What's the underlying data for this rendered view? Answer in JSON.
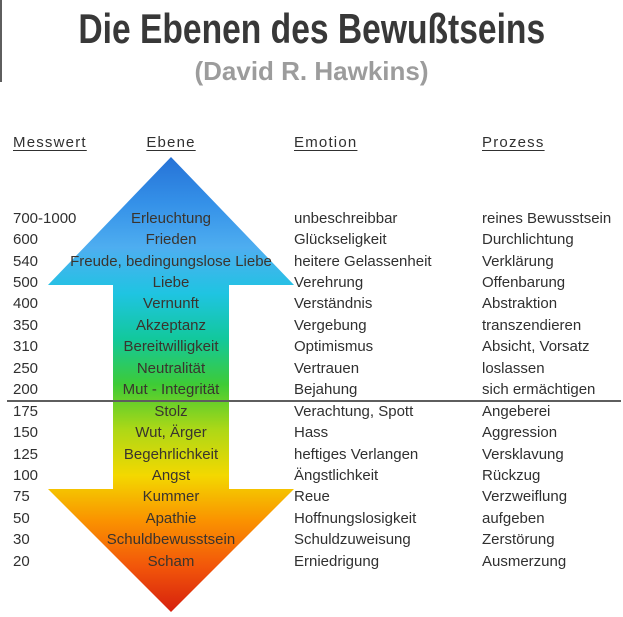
{
  "title": "Die Ebenen des Bewußtseins",
  "subtitle": "(David R. Hawkins)",
  "headers": {
    "messwert": "Messwert",
    "ebene": "Ebene",
    "emotion": "Emotion",
    "prozess": "Prozess"
  },
  "rows": [
    {
      "messwert": "700-1000",
      "ebene": "Erleuchtung",
      "emotion": "unbeschreibbar",
      "prozess": "reines Bewusstsein"
    },
    {
      "messwert": "600",
      "ebene": "Frieden",
      "emotion": "Glückseligkeit",
      "prozess": "Durchlichtung"
    },
    {
      "messwert": "540",
      "ebene": "Freude, bedingungslose Liebe",
      "emotion": "heitere Gelassenheit",
      "prozess": "Verklärung"
    },
    {
      "messwert": "500",
      "ebene": "Liebe",
      "emotion": "Verehrung",
      "prozess": "Offenbarung"
    },
    {
      "messwert": "400",
      "ebene": "Vernunft",
      "emotion": "Verständnis",
      "prozess": "Abstraktion"
    },
    {
      "messwert": "350",
      "ebene": "Akzeptanz",
      "emotion": "Vergebung",
      "prozess": "transzendieren"
    },
    {
      "messwert": "310",
      "ebene": "Bereitwilligkeit",
      "emotion": "Optimismus",
      "prozess": "Absicht, Vorsatz"
    },
    {
      "messwert": "250",
      "ebene": "Neutralität",
      "emotion": "Vertrauen",
      "prozess": "loslassen"
    },
    {
      "messwert": "200",
      "ebene": "Mut - Integrität",
      "emotion": "Bejahung",
      "prozess": "sich ermächtigen"
    },
    {
      "messwert": "175",
      "ebene": "Stolz",
      "emotion": "Verachtung, Spott",
      "prozess": "Angeberei"
    },
    {
      "messwert": "150",
      "ebene": "Wut, Ärger",
      "emotion": "Hass",
      "prozess": "Aggression"
    },
    {
      "messwert": "125",
      "ebene": "Begehrlichkeit",
      "emotion": "heftiges Verlangen",
      "prozess": "Versklavung"
    },
    {
      "messwert": "100",
      "ebene": "Angst",
      "emotion": "Ängstlichkeit",
      "prozess": "Rückzug"
    },
    {
      "messwert": "75",
      "ebene": "Kummer",
      "emotion": "Reue",
      "prozess": "Verzweiflung"
    },
    {
      "messwert": "50",
      "ebene": "Apathie",
      "emotion": "Hoffnungslosigkeit",
      "prozess": "aufgeben"
    },
    {
      "messwert": "30",
      "ebene": "Schuldbewusstsein",
      "emotion": "Schuldzuweisung",
      "prozess": "Zerstörung"
    },
    {
      "messwert": "20",
      "ebene": "Scham",
      "emotion": "Erniedrigung",
      "prozess": "Ausmerzung"
    }
  ],
  "colors": {
    "title": "#383838",
    "subtitle": "#9c9c9c",
    "text": "#303030",
    "level_text": "#3a342e",
    "divider": "#5e5e5e",
    "arrow_gradient": [
      "#2672d6",
      "#3490e8",
      "#4eaef0",
      "#1fc4e2",
      "#12c89c",
      "#3ecb36",
      "#aed816",
      "#f3d800",
      "#fa9200",
      "#f2560a",
      "#d6200e"
    ]
  }
}
